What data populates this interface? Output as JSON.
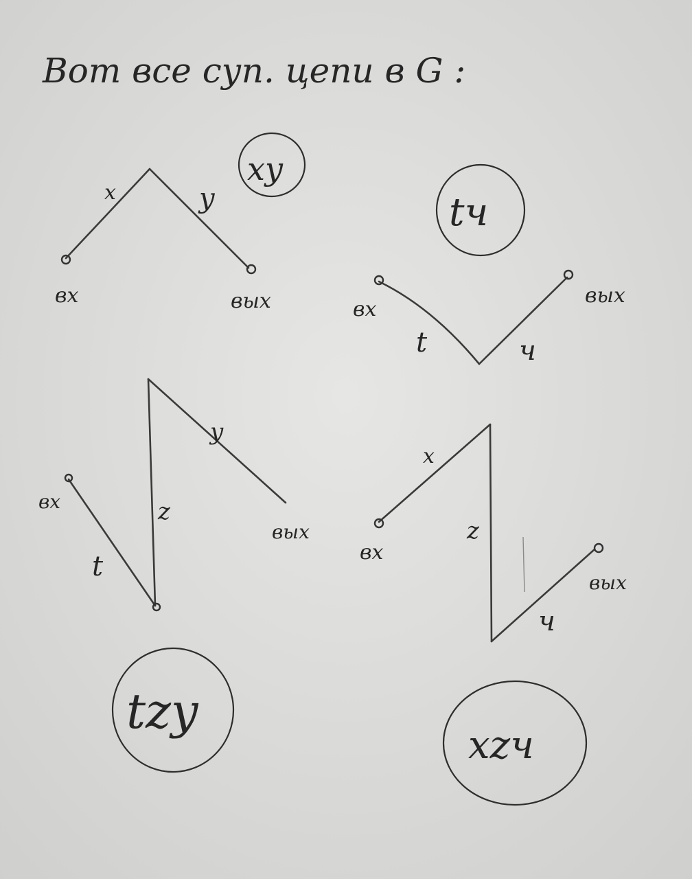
{
  "heading": "Вот все суп. цепи в G :",
  "diagrams": [
    {
      "id": "xy",
      "circled_label": "xy",
      "edges": [
        "x",
        "y"
      ],
      "input_label": "вх",
      "output_label": "вых"
    },
    {
      "id": "ty",
      "circled_label": "tч",
      "edges": [
        "t",
        "ч"
      ],
      "input_label": "вх",
      "output_label": "вых"
    },
    {
      "id": "tzy",
      "circled_label": "tzy",
      "edges": [
        "t",
        "z",
        "y"
      ],
      "input_label": "вх",
      "output_label": "вых"
    },
    {
      "id": "xzy",
      "circled_label": "xzч",
      "edges": [
        "x",
        "z",
        "ч"
      ],
      "input_label": "вх",
      "output_label": "вых"
    }
  ]
}
